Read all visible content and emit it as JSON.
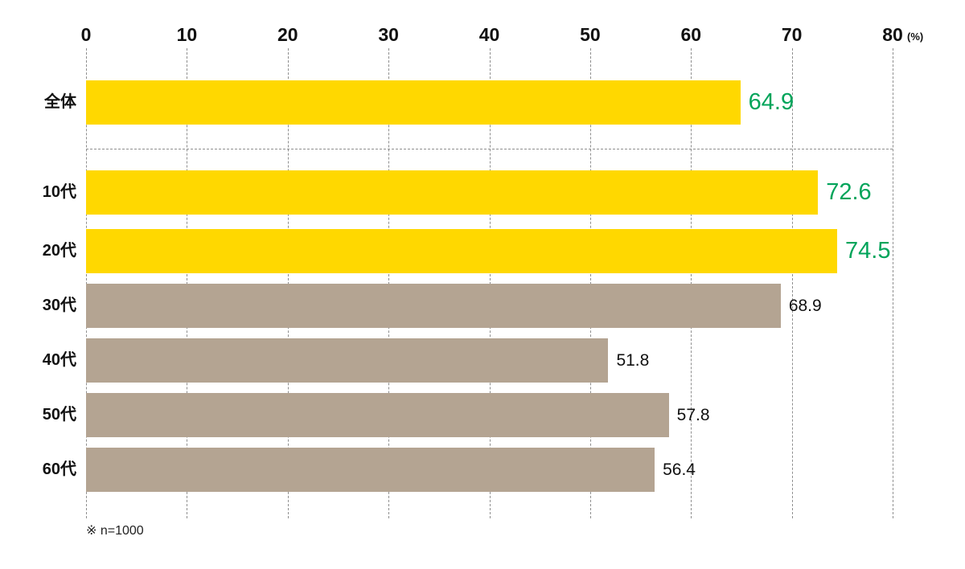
{
  "chart_data": {
    "type": "bar",
    "orientation": "horizontal",
    "title": "",
    "categories": [
      "全体",
      "10代",
      "20代",
      "30代",
      "40代",
      "50代",
      "60代"
    ],
    "values": [
      64.9,
      72.6,
      74.5,
      68.9,
      51.8,
      57.8,
      56.4
    ],
    "value_labels": [
      "64.9",
      "72.6",
      "74.5",
      "68.9",
      "51.8",
      "57.8",
      "56.4"
    ],
    "highlighted": [
      true,
      true,
      true,
      false,
      false,
      false,
      false
    ],
    "xlim": [
      0,
      80
    ],
    "x_ticks": [
      "0",
      "10",
      "20",
      "30",
      "40",
      "50",
      "60",
      "70",
      "80"
    ],
    "x_unit": "(%)",
    "grid": "dashed-vertical",
    "separator_after_index": 0,
    "footnote": "※ n=1000",
    "colors": {
      "highlight_bar": "#FFD800",
      "normal_bar": "#B4A492",
      "highlight_value": "#00A45A",
      "normal_value": "#111111",
      "grid": "#8f8f8f",
      "text": "#111111"
    }
  }
}
